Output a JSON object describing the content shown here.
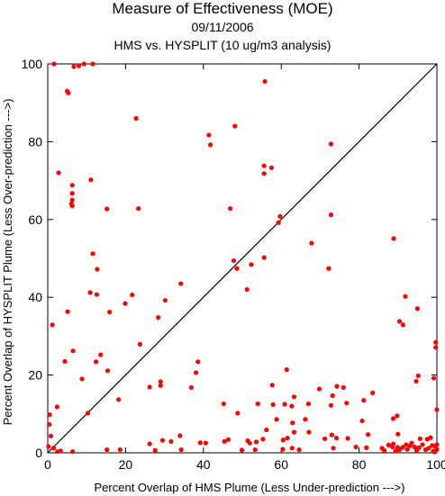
{
  "chart_data": {
    "type": "scatter",
    "title": "Measure of Effectiveness (MOE)",
    "subtitle": "09/11/2006",
    "subtitle2": "HMS vs. HYSPLIT  (10 ug/m3 analysis)",
    "xlabel": "Percent Overlap of HMS Plume (Less Under-prediction --->)",
    "ylabel": "Percent Overlap of HYSPLIT Plume (Less Over-prediction --->)",
    "xlim": [
      0,
      100
    ],
    "ylim": [
      0,
      100
    ],
    "xticks": [
      "0",
      "20",
      "40",
      "60",
      "80",
      "100"
    ],
    "yticks": [
      "0",
      "20",
      "40",
      "60",
      "80",
      "100"
    ],
    "reference_line": "1:1 diagonal",
    "grid": false,
    "colors": {
      "points": "#ff0000",
      "line": "#000000"
    },
    "points": [
      [
        1.6,
        100
      ],
      [
        6.7,
        99.3
      ],
      [
        8,
        99.5
      ],
      [
        9.3,
        100
      ],
      [
        11.6,
        100
      ],
      [
        5,
        93
      ],
      [
        5.3,
        92.5
      ],
      [
        55.8,
        95.5
      ],
      [
        22.7,
        86
      ],
      [
        41.4,
        81.7
      ],
      [
        48.1,
        84
      ],
      [
        41.8,
        79.2
      ],
      [
        72.8,
        79.4
      ],
      [
        2.8,
        72
      ],
      [
        55.6,
        73.8
      ],
      [
        57.5,
        73.3
      ],
      [
        55.6,
        71.8
      ],
      [
        11.1,
        70.2
      ],
      [
        6.3,
        68.8
      ],
      [
        6.3,
        66.7
      ],
      [
        6.3,
        65
      ],
      [
        6.1,
        64
      ],
      [
        6.3,
        63.5
      ],
      [
        15.2,
        62.7
      ],
      [
        23.3,
        62.8
      ],
      [
        46.9,
        62.8
      ],
      [
        59.7,
        60.8
      ],
      [
        59.3,
        59.2
      ],
      [
        72.8,
        61.2
      ],
      [
        88.9,
        55.1
      ],
      [
        67.8,
        53.9
      ],
      [
        11.6,
        51.2
      ],
      [
        47.8,
        49.4
      ],
      [
        55.6,
        50.2
      ],
      [
        48.6,
        47.4
      ],
      [
        52.3,
        48.4
      ],
      [
        72.2,
        47.4
      ],
      [
        12.7,
        47.2
      ],
      [
        34.2,
        43.5
      ],
      [
        51.2,
        42
      ],
      [
        5.1,
        36.3
      ],
      [
        10.9,
        41.2
      ],
      [
        12.6,
        40.7
      ],
      [
        21.7,
        40.6
      ],
      [
        91.9,
        40.2
      ],
      [
        95,
        37.1
      ],
      [
        30.2,
        39.2
      ],
      [
        19.9,
        38.4
      ],
      [
        15.9,
        36.2
      ],
      [
        28.4,
        34.8
      ],
      [
        90.4,
        33.8
      ],
      [
        1.2,
        32.9
      ],
      [
        91.3,
        32.9
      ],
      [
        23.7,
        27.9
      ],
      [
        6.5,
        26.2
      ],
      [
        99.7,
        28.4
      ],
      [
        99.7,
        27.1
      ],
      [
        13.6,
        25.2
      ],
      [
        4.4,
        23.5
      ],
      [
        12.4,
        23.4
      ],
      [
        38.6,
        23.4
      ],
      [
        15.4,
        21.1
      ],
      [
        38.1,
        20.6
      ],
      [
        61.4,
        21.4
      ],
      [
        8.8,
        19
      ],
      [
        95.2,
        19.8
      ],
      [
        94.7,
        18.4
      ],
      [
        99.2,
        19.2
      ],
      [
        29,
        18.3
      ],
      [
        29,
        17.3
      ],
      [
        26.2,
        16.9
      ],
      [
        36.9,
        16.8
      ],
      [
        69.8,
        16.4
      ],
      [
        57.7,
        17.4
      ],
      [
        74.3,
        17.1
      ],
      [
        76,
        16.8
      ],
      [
        73.2,
        14.7
      ],
      [
        63.3,
        14.4
      ],
      [
        83.5,
        15.4
      ],
      [
        18.2,
        13.7
      ],
      [
        2.4,
        11.8
      ],
      [
        10.3,
        10.2
      ],
      [
        45.2,
        12.6
      ],
      [
        54,
        12.6
      ],
      [
        60.9,
        12.5
      ],
      [
        57.9,
        12.4
      ],
      [
        62.7,
        12
      ],
      [
        67,
        12.6
      ],
      [
        72.8,
        12.2
      ],
      [
        76.8,
        12.8
      ],
      [
        81.2,
        13.5
      ],
      [
        100,
        11.1
      ],
      [
        0.5,
        9.8
      ],
      [
        48.8,
        10.2
      ],
      [
        89.8,
        9.5
      ],
      [
        80.8,
        8.2
      ],
      [
        88.8,
        8.8
      ],
      [
        58.8,
        8.6
      ],
      [
        62.9,
        7.7
      ],
      [
        66.2,
        8.6
      ],
      [
        0.4,
        7.3
      ],
      [
        0.8,
        4.3
      ],
      [
        73,
        4.6
      ],
      [
        67.1,
        5.3
      ],
      [
        63.3,
        5.3
      ],
      [
        56.2,
        5.9
      ],
      [
        61.6,
        3.8
      ],
      [
        74.2,
        3.8
      ],
      [
        77.1,
        3.7
      ],
      [
        82.3,
        4.7
      ],
      [
        90,
        4.8
      ],
      [
        93.5,
        2.5
      ],
      [
        95.7,
        3.6
      ],
      [
        97.5,
        3.5
      ],
      [
        98.4,
        3.9
      ],
      [
        34,
        4.4
      ],
      [
        39.2,
        2.6
      ],
      [
        40.6,
        2.5
      ],
      [
        45.4,
        2.9
      ],
      [
        46.4,
        3.4
      ],
      [
        51.4,
        3.1
      ],
      [
        51.9,
        2.5
      ],
      [
        55.3,
        3.5
      ],
      [
        53.6,
        2.8
      ],
      [
        60.5,
        3.3
      ],
      [
        71.2,
        3.6
      ],
      [
        29.5,
        3.2
      ],
      [
        31.7,
        2.9
      ],
      [
        26.2,
        2.3
      ],
      [
        0.2,
        1.6
      ],
      [
        1.5,
        1.2
      ],
      [
        2.5,
        0.3
      ],
      [
        3.3,
        0.5
      ],
      [
        6.4,
        0.3
      ],
      [
        15.2,
        0.8
      ],
      [
        18.6,
        0.8
      ],
      [
        27.6,
        0.6
      ],
      [
        34.3,
        0.8
      ],
      [
        49.9,
        0.7
      ],
      [
        53.3,
        0.8
      ],
      [
        60.4,
        0.9
      ],
      [
        62.8,
        1.2
      ],
      [
        64.6,
        0.8
      ],
      [
        73.4,
        1.2
      ],
      [
        79.2,
        1.5
      ],
      [
        81.9,
        1.3
      ],
      [
        85.9,
        1.2
      ],
      [
        87.6,
        2
      ],
      [
        88.6,
        1.5
      ],
      [
        89.4,
        0.5
      ],
      [
        89.9,
        1.4
      ],
      [
        90.4,
        0.8
      ],
      [
        91.2,
        1.4
      ],
      [
        92.1,
        2.1
      ],
      [
        92.4,
        0.9
      ],
      [
        93.1,
        1.8
      ],
      [
        94.3,
        1.5
      ],
      [
        94.8,
        0.6
      ],
      [
        95.4,
        1.3
      ],
      [
        96.3,
        2.1
      ],
      [
        97.1,
        0.8
      ],
      [
        97.9,
        1.2
      ],
      [
        98.8,
        1.9
      ],
      [
        99.1,
        0.4
      ],
      [
        99.6,
        1.6
      ],
      [
        100,
        0.9
      ],
      [
        100,
        2.1
      ],
      [
        99.4,
        0.2
      ],
      [
        86.5,
        0.6
      ],
      [
        88.8,
        2.3
      ]
    ]
  }
}
